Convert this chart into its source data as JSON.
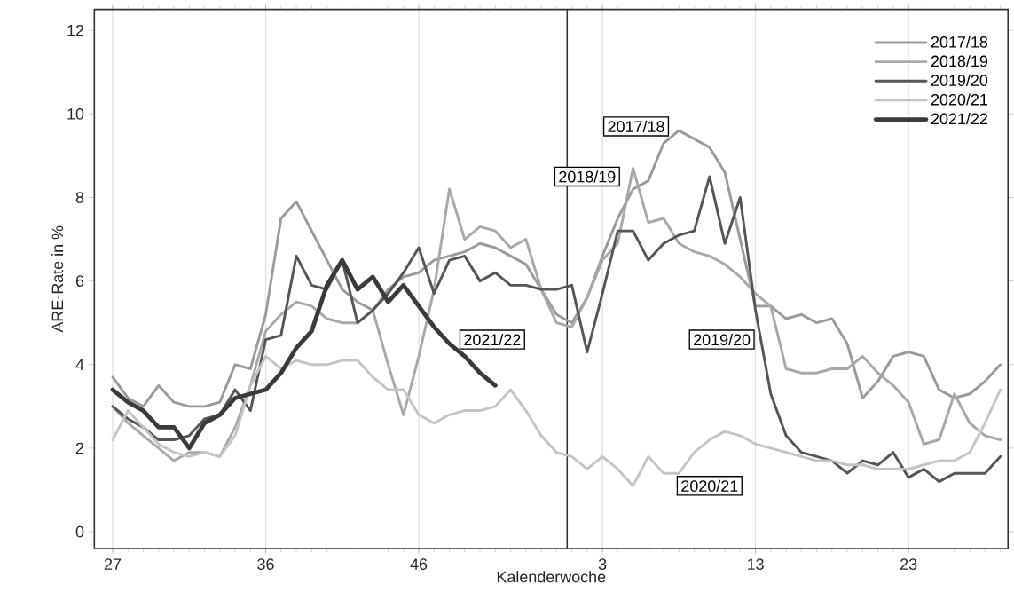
{
  "chart_data": {
    "type": "line",
    "xlabel": "Kalenderwoche",
    "ylabel": "ARE-Rate in %",
    "categories": [
      "27",
      null,
      null,
      null,
      null,
      null,
      null,
      null,
      null,
      null,
      "36",
      null,
      null,
      null,
      null,
      null,
      null,
      null,
      null,
      null,
      "46",
      null,
      null,
      null,
      null,
      null,
      null,
      null,
      null,
      null,
      null,
      null,
      "3",
      null,
      null,
      null,
      null,
      null,
      null,
      null,
      null,
      null,
      "13",
      null,
      null,
      null,
      null,
      null,
      null,
      null,
      null,
      null,
      "23",
      null,
      null,
      null,
      null,
      null,
      null
    ],
    "ylim": [
      -0.4,
      12.5
    ],
    "yticks": [
      0,
      2,
      4,
      6,
      8,
      10,
      12
    ],
    "grid": "x",
    "legend": "top right",
    "marker": "none",
    "line_style": "solid",
    "series": [
      {
        "name": "2017/18",
        "color": "#9a9a9a",
        "values": [
          3.7,
          3.2,
          3.0,
          3.5,
          3.1,
          3.0,
          3.0,
          3.1,
          4.0,
          3.9,
          5.2,
          7.5,
          7.9,
          7.2,
          6.5,
          5.8,
          5.5,
          5.3,
          5.8,
          6.1,
          6.2,
          6.5,
          6.6,
          6.7,
          6.9,
          6.8,
          6.6,
          6.4,
          5.8,
          5.2,
          5.0,
          5.6,
          6.6,
          7.5,
          8.2,
          8.4,
          9.3,
          9.6,
          9.4,
          9.2,
          8.6,
          7.0,
          5.4,
          5.4,
          5.1,
          5.2,
          5.0,
          5.1,
          4.5,
          3.2,
          3.6,
          4.2,
          4.3,
          4.2,
          3.4,
          3.2,
          3.3,
          3.6,
          4.0
        ]
      },
      {
        "name": "2018/19",
        "color": "#a8a8a8",
        "values": [
          3.0,
          2.6,
          2.3,
          2.0,
          1.7,
          1.9,
          1.9,
          1.8,
          2.5,
          3.5,
          4.8,
          5.2,
          5.5,
          5.4,
          5.1,
          5.0,
          5.0,
          5.3,
          4.0,
          2.8,
          4.2,
          5.8,
          8.2,
          7.0,
          7.3,
          7.2,
          6.8,
          7.0,
          5.8,
          5.0,
          4.9,
          5.6,
          6.5,
          6.9,
          8.7,
          7.4,
          7.5,
          6.9,
          6.7,
          6.6,
          6.4,
          6.1,
          5.7,
          5.4,
          3.9,
          3.8,
          3.8,
          3.9,
          3.9,
          4.2,
          3.8,
          3.5,
          3.1,
          2.1,
          2.2,
          3.3,
          2.6,
          2.3,
          2.2
        ]
      },
      {
        "name": "2019/20",
        "color": "#555555",
        "values": [
          3.0,
          2.7,
          2.5,
          2.2,
          2.2,
          2.3,
          2.7,
          2.8,
          3.4,
          2.9,
          4.6,
          4.7,
          6.6,
          5.9,
          5.8,
          6.5,
          5.0,
          5.3,
          5.7,
          6.2,
          6.8,
          5.7,
          6.5,
          6.6,
          6.0,
          6.2,
          5.9,
          5.9,
          5.8,
          5.8,
          5.9,
          4.3,
          5.7,
          7.2,
          7.2,
          6.5,
          6.9,
          7.1,
          7.2,
          8.5,
          6.9,
          8.0,
          5.3,
          3.3,
          2.3,
          1.9,
          1.8,
          1.7,
          1.4,
          1.7,
          1.6,
          1.9,
          1.3,
          1.5,
          1.2,
          1.4,
          1.4,
          1.4,
          1.8
        ]
      },
      {
        "name": "2020/21",
        "color": "#c4c4c4",
        "values": [
          2.2,
          2.9,
          2.5,
          2.1,
          1.9,
          1.8,
          1.9,
          1.8,
          2.3,
          3.5,
          4.2,
          3.9,
          4.1,
          4.0,
          4.0,
          4.1,
          4.1,
          3.7,
          3.4,
          3.4,
          2.8,
          2.6,
          2.8,
          2.9,
          2.9,
          3.0,
          3.4,
          2.9,
          2.3,
          1.9,
          1.8,
          1.5,
          1.8,
          1.5,
          1.1,
          1.8,
          1.4,
          1.4,
          1.9,
          2.2,
          2.4,
          2.3,
          2.1,
          2.0,
          1.9,
          1.8,
          1.7,
          1.7,
          1.6,
          1.6,
          1.5,
          1.5,
          1.5,
          1.6,
          1.7,
          1.7,
          1.9,
          2.6,
          3.4
        ]
      },
      {
        "name": "2021/22",
        "color": "#3a3a3a",
        "values": [
          3.4,
          3.1,
          2.9,
          2.5,
          2.5,
          2.0,
          2.6,
          2.8,
          3.2,
          3.3,
          3.4,
          3.8,
          4.4,
          4.8,
          5.9,
          6.5,
          5.8,
          6.1,
          5.5,
          5.9,
          5.4,
          4.9,
          4.5,
          4.2,
          3.8,
          3.5,
          null,
          null,
          null,
          null,
          null,
          null,
          null,
          null,
          null,
          null,
          null,
          null,
          null,
          null,
          null,
          null,
          null,
          null,
          null,
          null,
          null,
          null,
          null,
          null,
          null,
          null,
          null,
          null,
          null,
          null,
          null,
          null,
          null
        ]
      }
    ],
    "annotations": [
      "2017/18",
      "2018/19",
      "2021/22",
      "2019/20",
      "2020/21"
    ]
  }
}
